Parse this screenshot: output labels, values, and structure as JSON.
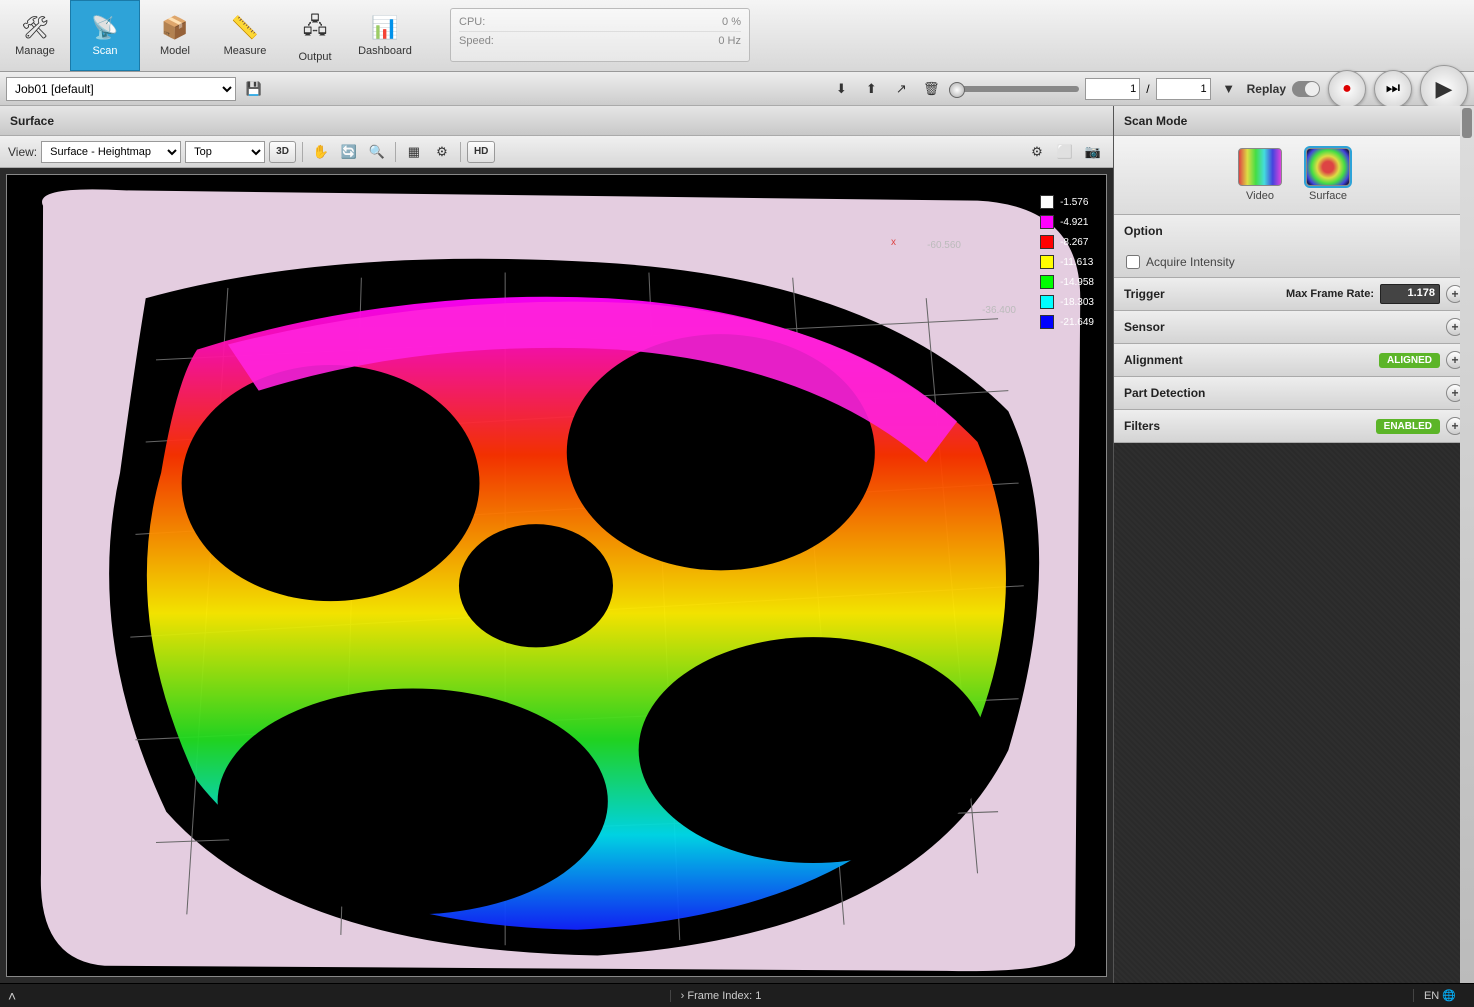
{
  "toolbar": {
    "items": [
      {
        "label": "Manage",
        "icon": "🛠"
      },
      {
        "label": "Scan",
        "icon": "📡",
        "active": true
      },
      {
        "label": "Model",
        "icon": "📦"
      },
      {
        "label": "Measure",
        "icon": "📏"
      },
      {
        "label": "Output",
        "icon": "🖧"
      },
      {
        "label": "Dashboard",
        "icon": "📊"
      }
    ],
    "cpu_label": "CPU:",
    "cpu_value": "0 %",
    "speed_label": "Speed:",
    "speed_value": "0 Hz"
  },
  "secondbar": {
    "job": "Job01 [default]",
    "range_from": "1",
    "range_sep": "/",
    "range_to": "1",
    "replay_label": "Replay"
  },
  "surface_panel": {
    "title": "Surface",
    "view_label": "View:",
    "view_mode": "Surface - Heightmap",
    "orient": "Top",
    "btn3d": "3D",
    "btnhd": "HD"
  },
  "legend": {
    "items": [
      {
        "color": "#ffffff",
        "value": "-1.576"
      },
      {
        "color": "#ff00ff",
        "value": "-4.921"
      },
      {
        "color": "#ff0000",
        "value": "-8.267"
      },
      {
        "color": "#ffff00",
        "value": "-11.613"
      },
      {
        "color": "#00ff00",
        "value": "-14.958"
      },
      {
        "color": "#00ffff",
        "value": "-18.303"
      },
      {
        "color": "#0000ff",
        "value": "-21.649"
      }
    ],
    "axis_x_label": "x",
    "axis_x_val": "-60.560",
    "axis_z_val": "-36.400"
  },
  "sidepanel": {
    "scan_mode_title": "Scan Mode",
    "modes": [
      {
        "label": "Video"
      },
      {
        "label": "Surface",
        "active": true
      }
    ],
    "option_title": "Option",
    "acquire_label": "Acquire Intensity",
    "trigger_title": "Trigger",
    "max_frame_label": "Max Frame Rate:",
    "max_frame_value": "1.178",
    "sensor_title": "Sensor",
    "alignment_title": "Alignment",
    "alignment_status": "ALIGNED",
    "partdet_title": "Part Detection",
    "filters_title": "Filters",
    "filters_status": "ENABLED"
  },
  "statusbar": {
    "frame_label": "Frame Index: 1",
    "lang": "EN"
  },
  "viz": {
    "bg": "#000000",
    "plate": "#e4cde0",
    "grad_stops": [
      {
        "o": "0%",
        "c": "#ff00ff"
      },
      {
        "o": "20%",
        "c": "#ff0000"
      },
      {
        "o": "40%",
        "c": "#ffff00"
      },
      {
        "o": "60%",
        "c": "#00ff00"
      },
      {
        "o": "80%",
        "c": "#00ffff"
      },
      {
        "o": "100%",
        "c": "#0000ff"
      }
    ]
  }
}
